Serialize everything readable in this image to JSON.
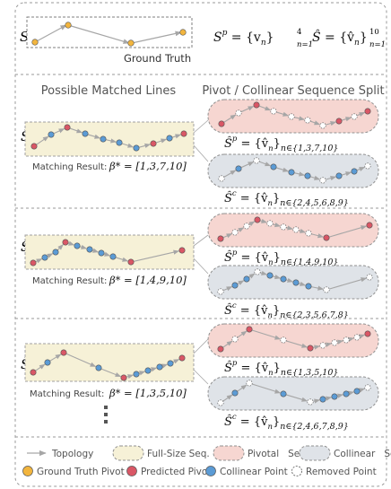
{
  "top": {
    "sp_label": "S",
    "sp_sup": "p",
    "ground_truth_label": "Ground Truth",
    "eq_sp_left": "S",
    "eq_sp_sup": "p",
    "eq_sp_rhs": " = {v",
    "eq_sp_sub": "n",
    "eq_sp_close": "}",
    "eq_sp_range_top": "4",
    "eq_sp_range_bot": "n=1",
    "eq_shat_left": "Ŝ",
    "eq_shat_rhs": " = {v̂",
    "eq_shat_sub": "n",
    "eq_shat_close": "}",
    "eq_shat_range_top": "10",
    "eq_shat_range_bot": "n=1"
  },
  "headers": {
    "left": "Possible Matched Lines",
    "right": "Pivot / Collinear Sequence Split"
  },
  "rows": [
    {
      "shat_label": "Ŝ",
      "matching_label": "Matching Result:",
      "beta": "β* = [1,3,7,10]",
      "pivot_eq_left": "Ŝ",
      "pivot_eq_sup": "p",
      "pivot_eq_mid": " = {v̂",
      "pivot_eq_sub": "n",
      "pivot_eq_set": "n∈{1,3,7,10}",
      "pivot_eq_close": "}",
      "coll_eq_left": "Ŝ",
      "coll_eq_sup": "c",
      "coll_eq_mid": " = {v̂",
      "coll_eq_sub": "n",
      "coll_eq_set": "n∈{2,4,5,6,8,9}",
      "coll_eq_close": "}"
    },
    {
      "shat_label": "Ŝ",
      "matching_label": "Matching Result:",
      "beta": "β* = [1,4,9,10]",
      "pivot_eq_left": "Ŝ",
      "pivot_eq_sup": "p",
      "pivot_eq_mid": " = {v̂",
      "pivot_eq_sub": "n",
      "pivot_eq_set": "n∈{1,4,9,10}",
      "pivot_eq_close": "}",
      "coll_eq_left": "Ŝ",
      "coll_eq_sup": "c",
      "coll_eq_mid": " = {v̂",
      "coll_eq_sub": "n",
      "coll_eq_set": "n∈{2,3,5,6,7,8}",
      "coll_eq_close": "}"
    },
    {
      "shat_label": "Ŝ",
      "matching_label": "Matching Result:",
      "beta": "β* = [1,3,5,10]",
      "pivot_eq_left": "Ŝ",
      "pivot_eq_sup": "p",
      "pivot_eq_mid": " = {v̂",
      "pivot_eq_sub": "n",
      "pivot_eq_set": "n∈{1,3,5,10}",
      "pivot_eq_close": "}",
      "coll_eq_left": "Ŝ",
      "coll_eq_sup": "c",
      "coll_eq_mid": " = {v̂",
      "coll_eq_sub": "n",
      "coll_eq_set": "n∈{2,4,6,7,8,9}",
      "coll_eq_close": "}"
    }
  ],
  "legend": {
    "topology": "Topology",
    "full_size": "Full-Size Seq.",
    "pivotal": "Pivotal   Seq.",
    "collinear": "Collinear   Seq.",
    "gt_pivot": "Ground Truth Pivot",
    "pred_pivot": "Predicted Pivot",
    "coll_point": "Collinear Point",
    "removed_point": "Removed Point"
  },
  "colors": {
    "gt_pivot": "#f2b53e",
    "pred_pivot": "#d95766",
    "coll_point": "#5b9bd5",
    "removed_point": "#ffffff",
    "line": "#a6a6a6",
    "full_size_fill": "#f6f1d7",
    "pivotal_fill": "#f6d6d1",
    "collinear_fill": "#dfe3e8"
  }
}
